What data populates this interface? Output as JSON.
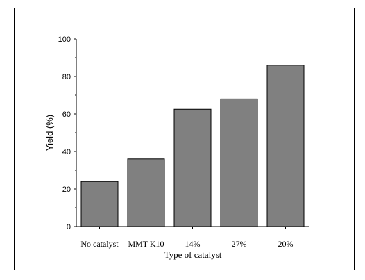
{
  "chart_data": {
    "type": "bar",
    "categories": [
      "No catalyst",
      "MMT K10",
      "14%",
      "27%",
      "20%"
    ],
    "values": [
      24,
      36,
      62.5,
      68,
      86
    ],
    "title": "",
    "xlabel": "Type of catalyst",
    "ylabel": "Yield (%)",
    "ylim": [
      0,
      100
    ],
    "yticks": [
      0,
      20,
      40,
      60,
      80,
      100
    ],
    "grid": false,
    "bar_color": "#808080",
    "bar_edge_color": "#000000"
  }
}
